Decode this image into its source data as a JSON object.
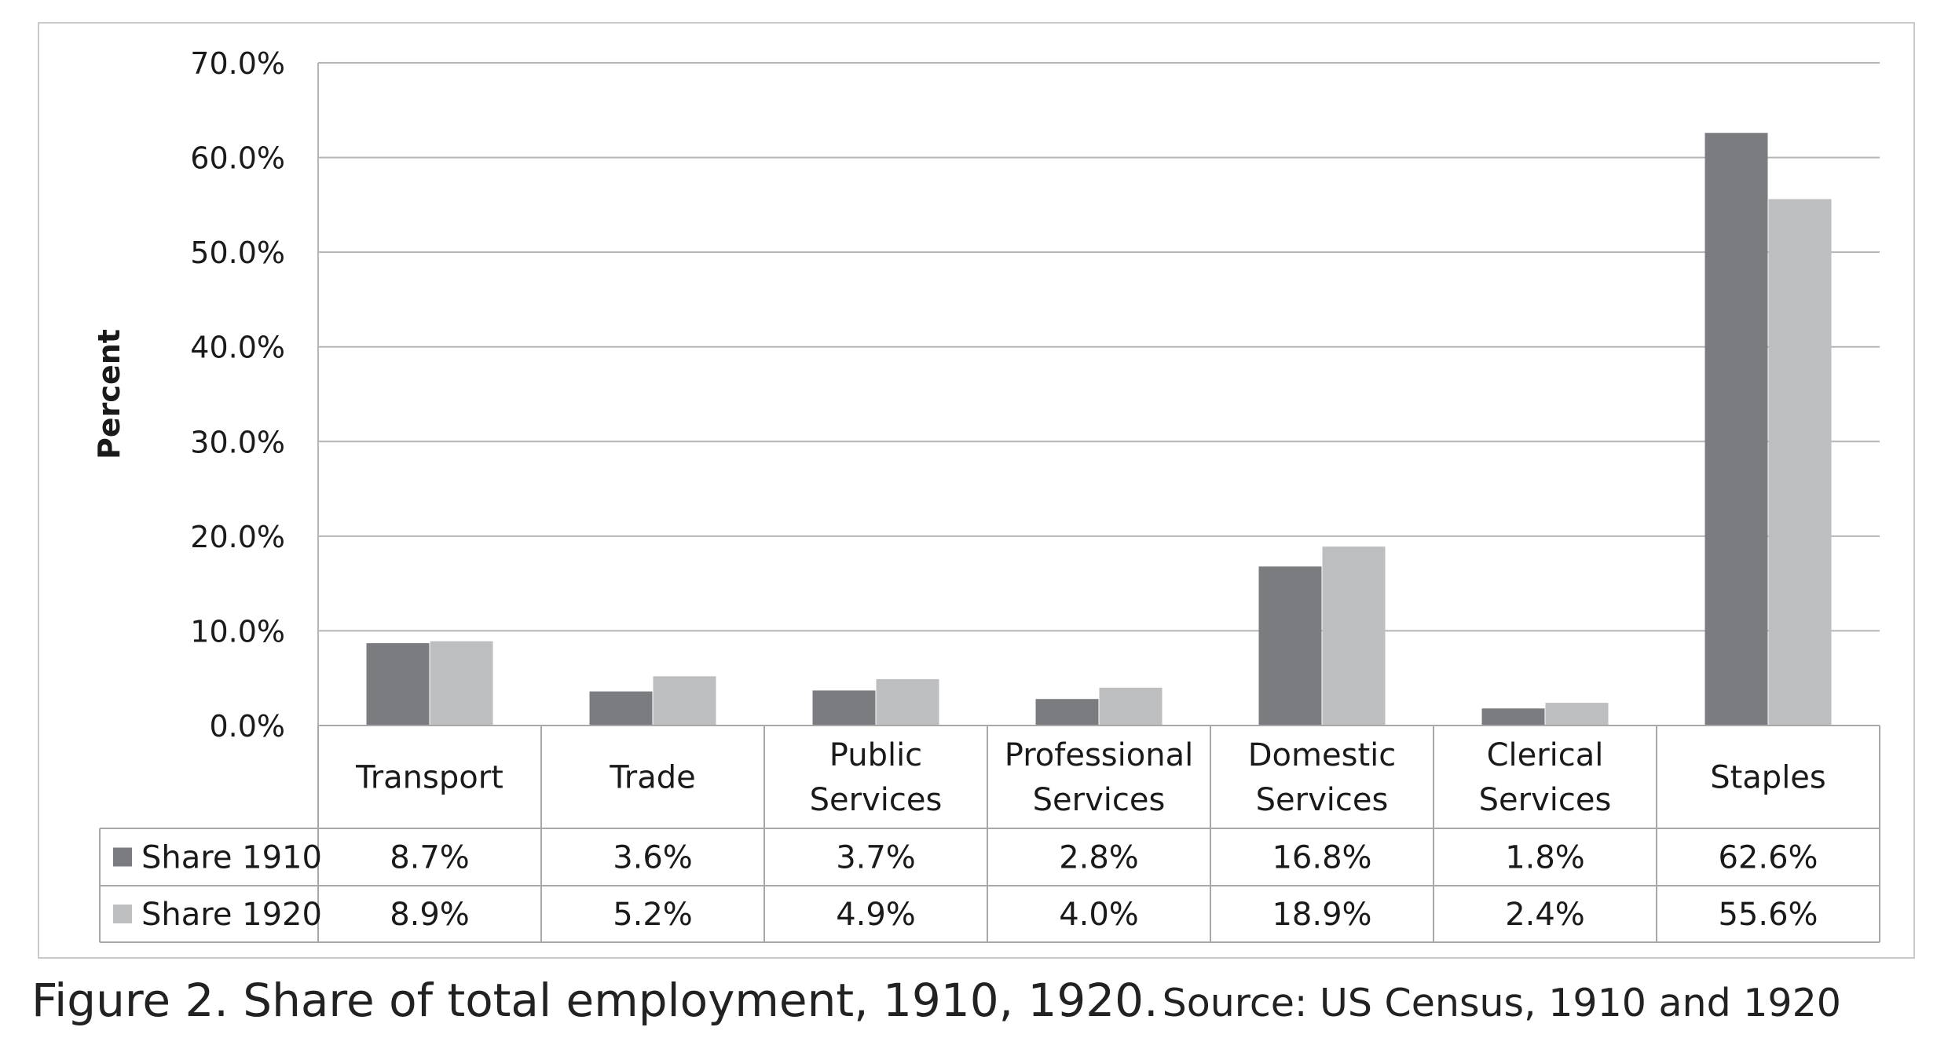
{
  "chart_data": {
    "type": "bar",
    "categories": [
      [
        "Transport"
      ],
      [
        "Trade"
      ],
      [
        "Public",
        "Services"
      ],
      [
        "Professional",
        "Services"
      ],
      [
        "Domestic",
        "Services"
      ],
      [
        "Clerical",
        "Services"
      ],
      [
        "Staples"
      ]
    ],
    "series": [
      {
        "name": "Share 1910",
        "values": [
          8.7,
          3.6,
          3.7,
          2.8,
          16.8,
          1.8,
          62.6
        ],
        "labels": [
          "8.7%",
          "3.6%",
          "3.7%",
          "2.8%",
          "16.8%",
          "1.8%",
          "62.6%"
        ],
        "color": "#7b7c80"
      },
      {
        "name": "Share 1920",
        "values": [
          8.9,
          5.2,
          4.9,
          4.0,
          18.9,
          2.4,
          55.6
        ],
        "labels": [
          "8.9%",
          "5.2%",
          "4.9%",
          "4.0%",
          "18.9%",
          "2.4%",
          "55.6%"
        ],
        "color": "#bdbebf"
      }
    ],
    "ylabel": "Percent",
    "ylim": [
      0,
      70
    ],
    "yticks": [
      "0.0%",
      "10.0%",
      "20.0%",
      "30.0%",
      "40.0%",
      "50.0%",
      "60.0%",
      "70.0%"
    ],
    "grid": true,
    "legend": "data-table"
  },
  "caption": {
    "main": "Figure 2. Share of total employment, 1910, 1920.",
    "source": "Source: US Census, 1910 and 1920"
  }
}
